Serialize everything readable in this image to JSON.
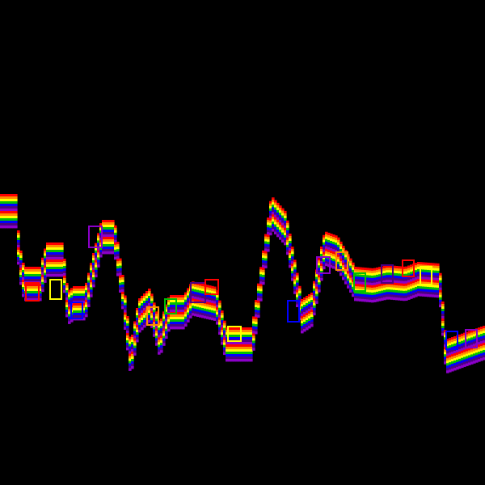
{
  "canvas": {
    "background": "#000000"
  },
  "artwork": {
    "motif": "rainbow-striped-zigzag-ribbon",
    "palette": [
      "#ff0000",
      "#ff8c00",
      "#ffff00",
      "#00c000",
      "#0000ff",
      "#4b0082",
      "#8b00c8"
    ]
  }
}
